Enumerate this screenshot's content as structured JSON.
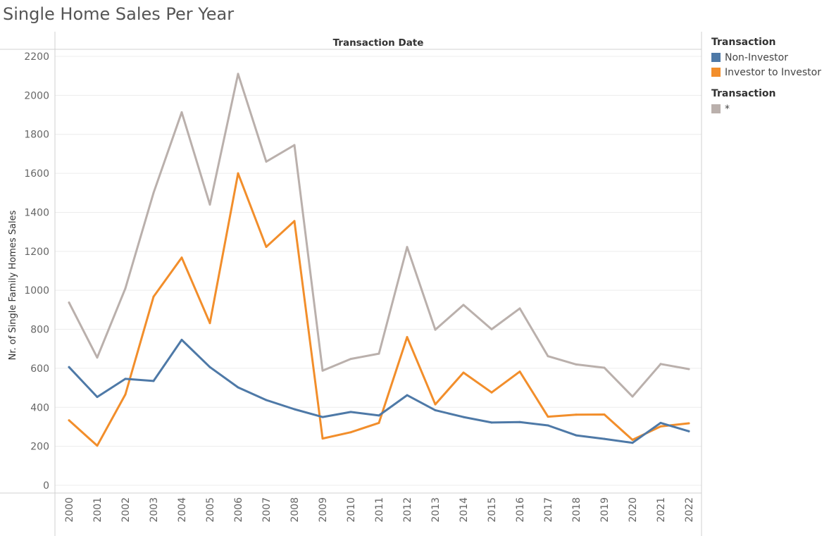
{
  "title": "Single Home Sales Per Year",
  "legends": [
    {
      "title": "Transaction",
      "items": [
        {
          "label": "Non-Investor",
          "color": "#4e79a7"
        },
        {
          "label": "Investor to Investor",
          "color": "#f28e2b"
        }
      ]
    },
    {
      "title": "Transaction",
      "items": [
        {
          "label": "*",
          "color": "#bab0ac"
        }
      ]
    }
  ],
  "chart_data": {
    "type": "line",
    "title": "Single Home Sales Per Year",
    "column_header": "Transaction Date",
    "xlabel": "",
    "ylabel": "Nr. of Single Family Homes Sales",
    "x": [
      "2000",
      "2001",
      "2002",
      "2003",
      "2004",
      "2005",
      "2006",
      "2007",
      "2008",
      "2009",
      "2010",
      "2011",
      "2012",
      "2013",
      "2014",
      "2015",
      "2016",
      "2017",
      "2018",
      "2019",
      "2020",
      "2021",
      "2022"
    ],
    "ylim": [
      0,
      2200
    ],
    "yticks": [
      0,
      200,
      400,
      600,
      800,
      1000,
      1200,
      1400,
      1600,
      1800,
      2000,
      2200
    ],
    "grid": true,
    "legend_position": "right",
    "series": [
      {
        "name": "*",
        "color": "#bab0ac",
        "values": [
          937,
          655,
          1010,
          1500,
          1913,
          1440,
          2110,
          1660,
          1745,
          588,
          648,
          675,
          1222,
          798,
          925,
          800,
          907,
          662,
          620,
          603,
          455,
          622,
          596
        ]
      },
      {
        "name": "Investor to Investor",
        "color": "#f28e2b",
        "values": [
          333,
          203,
          466,
          967,
          1168,
          832,
          1600,
          1223,
          1355,
          240,
          272,
          320,
          760,
          415,
          578,
          476,
          583,
          352,
          362,
          363,
          233,
          302,
          318
        ]
      },
      {
        "name": "Non-Investor",
        "color": "#4e79a7",
        "values": [
          606,
          453,
          546,
          535,
          746,
          606,
          502,
          437,
          390,
          350,
          376,
          358,
          462,
          385,
          350,
          322,
          324,
          307,
          256,
          238,
          218,
          320,
          277
        ]
      }
    ]
  }
}
